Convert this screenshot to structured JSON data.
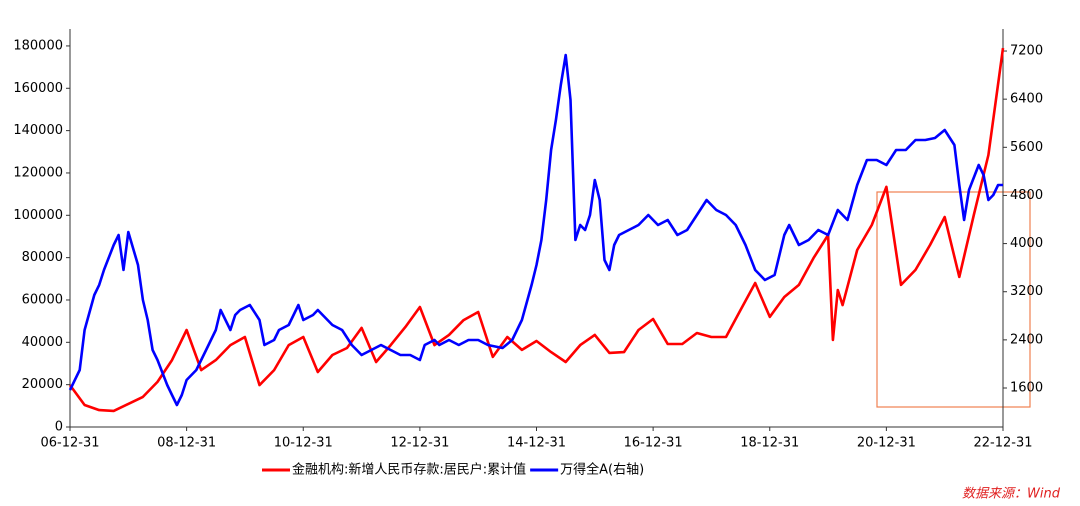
{
  "chart_data": {
    "type": "line",
    "source": "数据来源：Wind",
    "x_format": "YY-MM-DD",
    "xlim": [
      "2006-12-31",
      "2022-12-31"
    ],
    "xticks": [
      {
        "value": "2006-12-31",
        "label": "06-12-31"
      },
      {
        "value": "2008-12-31",
        "label": "08-12-31"
      },
      {
        "value": "2010-12-31",
        "label": "10-12-31"
      },
      {
        "value": "2012-12-31",
        "label": "12-12-31"
      },
      {
        "value": "2014-12-31",
        "label": "14-12-31"
      },
      {
        "value": "2016-12-31",
        "label": "16-12-31"
      },
      {
        "value": "2018-12-31",
        "label": "18-12-31"
      },
      {
        "value": "2020-12-31",
        "label": "20-12-31"
      },
      {
        "value": "2022-12-31",
        "label": "22-12-31"
      }
    ],
    "ylim": [
      0,
      188000
    ],
    "yticks": [
      0,
      20000,
      40000,
      60000,
      80000,
      100000,
      120000,
      140000,
      160000,
      180000
    ],
    "y2lim": [
      952,
      7566
    ],
    "y2ticks": [
      1600,
      2400,
      3200,
      4000,
      4800,
      5600,
      6400,
      7200
    ],
    "legend": "bottom",
    "series": [
      {
        "name": "金融机构:新增人民币存款:居民户:累计值",
        "color": "#ff0000",
        "axis": "y",
        "x": [
          "2006-12",
          "2007-03",
          "2007-06",
          "2007-09",
          "2008-03",
          "2008-06",
          "2008-09",
          "2008-12",
          "2009-03",
          "2009-06",
          "2009-09",
          "2009-12",
          "2010-03",
          "2010-06",
          "2010-09",
          "2010-12",
          "2011-03",
          "2011-06",
          "2011-09",
          "2011-12",
          "2012-03",
          "2012-06",
          "2012-09",
          "2012-12",
          "2013-03",
          "2013-06",
          "2013-09",
          "2013-12",
          "2014-03",
          "2014-06",
          "2014-09",
          "2014-12",
          "2015-03",
          "2015-06",
          "2015-09",
          "2015-12",
          "2016-03",
          "2016-06",
          "2016-09",
          "2016-12",
          "2017-03",
          "2017-06",
          "2017-09",
          "2017-12",
          "2018-03",
          "2018-06",
          "2018-09",
          "2018-12",
          "2019-03",
          "2019-06",
          "2019-09",
          "2019-12",
          "2020-01",
          "2020-02",
          "2020-03",
          "2020-06",
          "2020-09",
          "2020-12",
          "2021-03",
          "2021-06",
          "2021-09",
          "2021-12",
          "2022-03",
          "2022-06",
          "2022-09",
          "2022-12"
        ],
        "values": [
          19800,
          10400,
          8000,
          7600,
          14200,
          21300,
          31600,
          45800,
          26900,
          31600,
          38700,
          42500,
          19800,
          26900,
          38700,
          42500,
          26000,
          34000,
          37300,
          46800,
          30700,
          38700,
          47200,
          56700,
          38700,
          43500,
          50500,
          54300,
          33100,
          42500,
          36400,
          40600,
          35400,
          30700,
          38700,
          43500,
          35000,
          35400,
          45800,
          51000,
          39200,
          39200,
          44400,
          42500,
          42500,
          55300,
          68000,
          52000,
          61400,
          67100,
          79800,
          90700,
          41100,
          64700,
          57600,
          83600,
          95400,
          113400,
          67100,
          74200,
          86000,
          99200,
          70900,
          100100,
          128500,
          179000
        ]
      },
      {
        "name": "万得全A(右轴)",
        "color": "#0000ff",
        "axis": "y2",
        "x": [
          "2006-12",
          "2007-02",
          "2007-03",
          "2007-05",
          "2007-06",
          "2007-07",
          "2007-09",
          "2007-10",
          "2007-11",
          "2007-12",
          "2008-02",
          "2008-03",
          "2008-04",
          "2008-05",
          "2008-06",
          "2008-08",
          "2008-09",
          "2008-10",
          "2008-11",
          "2008-12",
          "2009-02",
          "2009-04",
          "2009-06",
          "2009-07",
          "2009-09",
          "2009-10",
          "2009-11",
          "2010-01",
          "2010-03",
          "2010-04",
          "2010-06",
          "2010-07",
          "2010-09",
          "2010-11",
          "2010-12",
          "2011-02",
          "2011-03",
          "2011-06",
          "2011-08",
          "2011-10",
          "2011-12",
          "2012-02",
          "2012-04",
          "2012-06",
          "2012-08",
          "2012-10",
          "2012-12",
          "2013-01",
          "2013-03",
          "2013-04",
          "2013-06",
          "2013-08",
          "2013-10",
          "2013-12",
          "2014-02",
          "2014-05",
          "2014-07",
          "2014-09",
          "2014-11",
          "2014-12",
          "2015-01",
          "2015-02",
          "2015-03",
          "2015-04",
          "2015-05",
          "2015-06",
          "2015-07",
          "2015-08",
          "2015-09",
          "2015-10",
          "2015-11",
          "2015-12",
          "2016-01",
          "2016-02",
          "2016-03",
          "2016-04",
          "2016-05",
          "2016-07",
          "2016-09",
          "2016-11",
          "2017-01",
          "2017-03",
          "2017-05",
          "2017-07",
          "2017-09",
          "2017-11",
          "2018-01",
          "2018-03",
          "2018-05",
          "2018-07",
          "2018-09",
          "2018-11",
          "2019-01",
          "2019-03",
          "2019-04",
          "2019-06",
          "2019-08",
          "2019-10",
          "2019-12",
          "2020-02",
          "2020-04",
          "2020-06",
          "2020-08",
          "2020-10",
          "2020-12",
          "2021-02",
          "2021-04",
          "2021-06",
          "2021-08",
          "2021-10",
          "2021-12",
          "2022-02",
          "2022-03",
          "2022-04",
          "2022-05",
          "2022-07",
          "2022-08",
          "2022-09",
          "2022-10",
          "2022-11",
          "2022-12"
        ],
        "values": [
          1567,
          1899,
          2564,
          3146,
          3313,
          3562,
          3977,
          4143,
          3562,
          4193,
          3644,
          3063,
          2730,
          2232,
          2065,
          1650,
          1484,
          1318,
          1484,
          1733,
          1899,
          2232,
          2564,
          2896,
          2564,
          2813,
          2896,
          2979,
          2730,
          2315,
          2398,
          2564,
          2647,
          2979,
          2730,
          2813,
          2896,
          2647,
          2564,
          2315,
          2148,
          2232,
          2315,
          2232,
          2148,
          2148,
          2065,
          2315,
          2398,
          2315,
          2398,
          2315,
          2398,
          2398,
          2315,
          2265,
          2398,
          2730,
          3313,
          3644,
          4060,
          4725,
          5556,
          6054,
          6636,
          7134,
          6387,
          4060,
          4309,
          4226,
          4475,
          5057,
          4725,
          3727,
          3561,
          3977,
          4143,
          4226,
          4309,
          4475,
          4309,
          4392,
          4143,
          4226,
          4475,
          4725,
          4558,
          4475,
          4309,
          3977,
          3561,
          3395,
          3478,
          4143,
          4309,
          3977,
          4060,
          4226,
          4143,
          4558,
          4392,
          4974,
          5389,
          5389,
          5306,
          5556,
          5556,
          5722,
          5722,
          5755,
          5888,
          5639,
          4974,
          4392,
          4891,
          5306,
          5140,
          4725,
          4808,
          4974,
          4974
        ]
      }
    ]
  }
}
